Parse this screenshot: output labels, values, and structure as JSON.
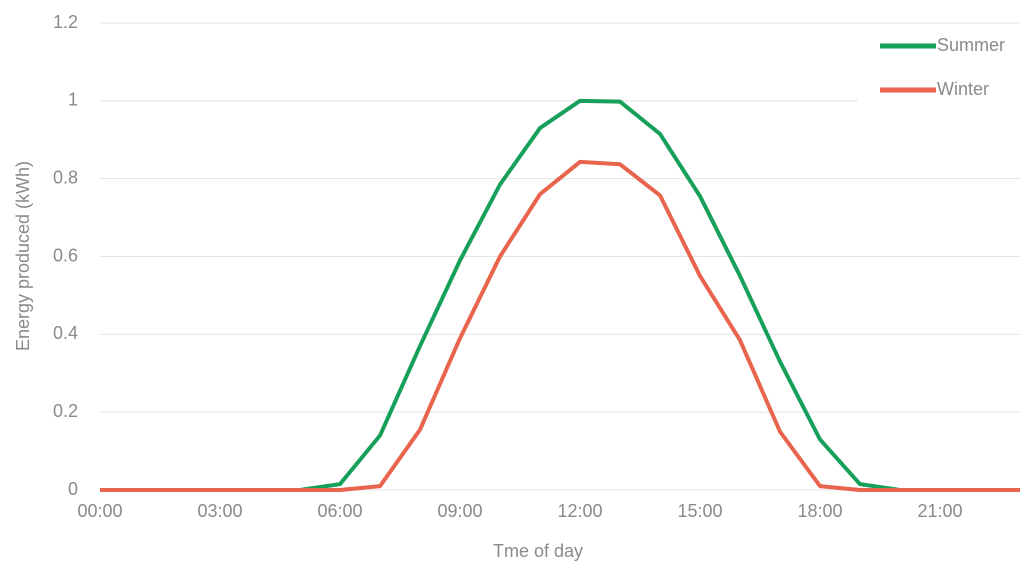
{
  "chart_data": {
    "type": "line",
    "x_label": "Tme of day",
    "y_label": "Energy produced (kWh)",
    "categories": [
      "00:00",
      null,
      null,
      "03:00",
      null,
      null,
      "06:00",
      null,
      null,
      "09:00",
      null,
      null,
      "12:00",
      null,
      null,
      "15:00",
      null,
      null,
      "18:00",
      null,
      null,
      "21:00",
      null,
      null
    ],
    "series": [
      {
        "name": "Summer",
        "color": "#16a05a",
        "values": [
          0,
          0,
          0,
          0,
          0,
          0,
          0.015,
          0.14,
          0.37,
          0.59,
          0.785,
          0.93,
          1.0,
          0.998,
          0.915,
          0.755,
          0.55,
          0.33,
          0.13,
          0.015,
          0,
          0,
          0,
          0
        ]
      },
      {
        "name": "Winter",
        "color": "#e8644c",
        "values": [
          0,
          0,
          0,
          0,
          0,
          0,
          0,
          0.01,
          0.155,
          0.39,
          0.6,
          0.76,
          0.843,
          0.837,
          0.757,
          0.55,
          0.385,
          0.15,
          0.01,
          0,
          0,
          0,
          0,
          0
        ]
      }
    ],
    "ylim": [
      0,
      1.2
    ],
    "yticks": [
      0,
      0.2,
      0.4,
      0.6,
      0.8,
      1,
      1.2
    ],
    "grid": true,
    "legend": "top-right"
  }
}
